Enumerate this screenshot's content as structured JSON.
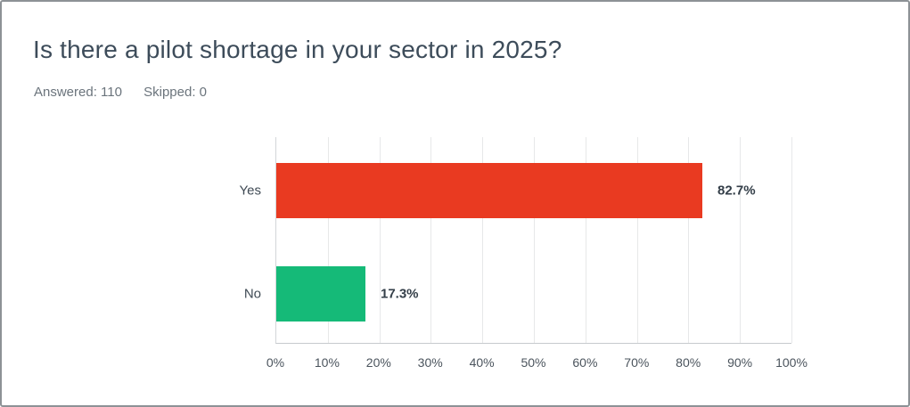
{
  "header": {
    "title": "Is there a pilot shortage in your sector in 2025?",
    "answered": "Answered: 110",
    "skipped": "Skipped: 0"
  },
  "colors": {
    "bar_yes": "#e93a21",
    "bar_no": "#15ba78",
    "title_text": "#3d4c5a",
    "meta_text": "#6b747c",
    "axis_text": "#4b545d",
    "value_text": "#333e48",
    "gridline": "#e7e8e9",
    "border": "#8d9296"
  },
  "chart_data": {
    "type": "bar",
    "orientation": "horizontal",
    "title": "Is there a pilot shortage in your sector in 2025?",
    "categories": [
      "Yes",
      "No"
    ],
    "values": [
      82.7,
      17.3
    ],
    "value_labels": [
      "82.7%",
      "17.3%"
    ],
    "bar_colors": [
      "#e93a21",
      "#15ba78"
    ],
    "x_ticks": [
      "0%",
      "10%",
      "20%",
      "30%",
      "40%",
      "50%",
      "60%",
      "70%",
      "80%",
      "90%",
      "100%"
    ],
    "xlim": [
      0,
      100
    ],
    "grid": "vertical",
    "legend": "none",
    "answered": 110,
    "skipped": 0
  }
}
